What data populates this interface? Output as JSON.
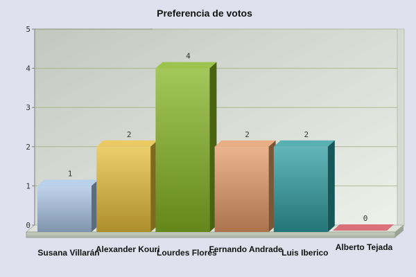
{
  "chart_data": {
    "type": "bar",
    "title": "Preferencia de votos",
    "xlabel": "",
    "ylabel": "",
    "ylim": [
      0,
      5
    ],
    "yticks": [
      0,
      1,
      2,
      3,
      4,
      5
    ],
    "categories": [
      "Susana Villarán",
      "Alexander Kouri",
      "Lourdes Flores",
      "Fernando Andrade",
      "Luis Iberico",
      "Alberto Tejada"
    ],
    "values": [
      1,
      2,
      4,
      2,
      2,
      0
    ],
    "data_labels": [
      "1",
      "2",
      "4",
      "2",
      "2",
      "0"
    ],
    "colors": [
      "#a9c6e6",
      "#e6bd3c",
      "#86b423",
      "#e49a68",
      "#2e9ca0",
      "#d9707a"
    ],
    "grid": true,
    "legend": "none",
    "style": "3d-columns"
  }
}
